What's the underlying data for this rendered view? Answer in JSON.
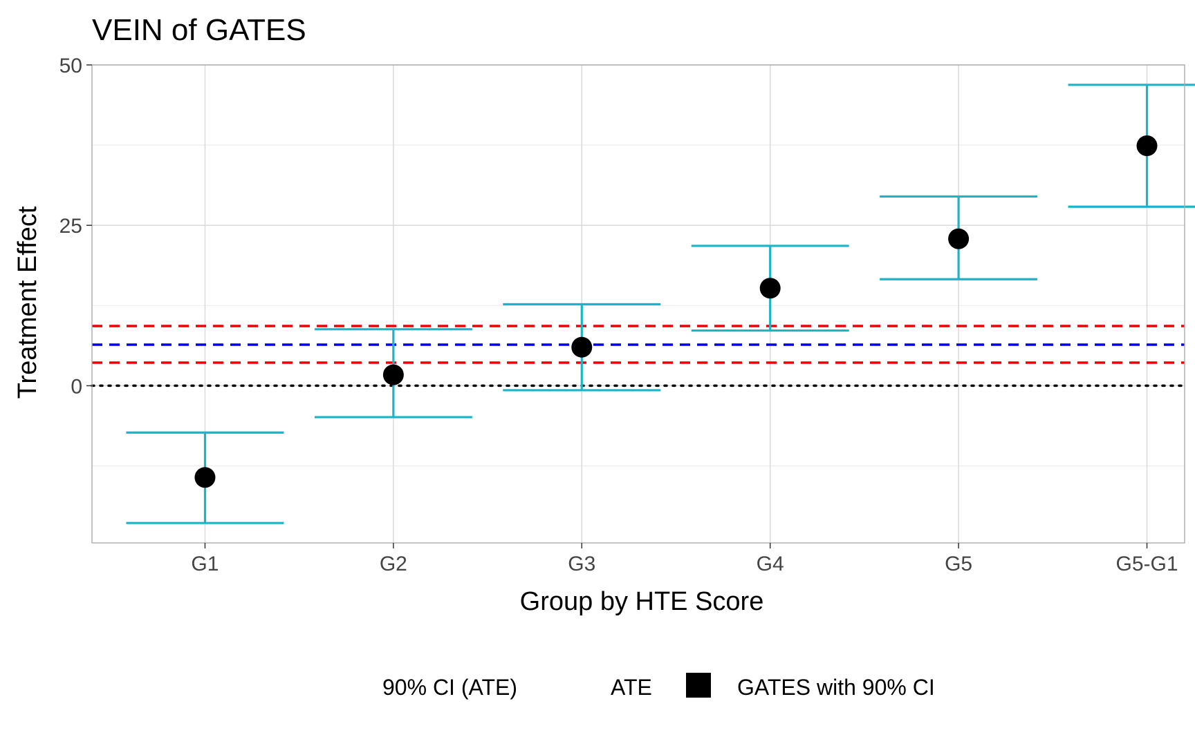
{
  "chart_data": {
    "type": "scatter",
    "title": "VEIN of GATES",
    "xlabel": "Group by HTE Score",
    "ylabel": "Treatment Effect",
    "categories": [
      "G1",
      "G2",
      "G3",
      "G4",
      "G5",
      "G5-G1"
    ],
    "ylim": [
      -24.5,
      50
    ],
    "yticks": [
      0,
      25,
      50
    ],
    "grid": true,
    "series": [
      {
        "name": "GATES with 90% CI",
        "values": [
          -14.3,
          1.7,
          6.0,
          15.2,
          22.9,
          37.4
        ],
        "lower": [
          -21.4,
          -4.9,
          -0.7,
          8.6,
          16.6,
          27.9
        ],
        "upper": [
          -7.3,
          8.8,
          12.7,
          21.8,
          29.5,
          46.9
        ]
      }
    ],
    "reference_lines": {
      "ate": 6.4,
      "ate_ci": [
        3.6,
        9.3
      ],
      "zero": 0
    },
    "legend": {
      "position": "bottom",
      "items": [
        "90% CI (ATE)",
        "ATE",
        "GATES with 90% CI"
      ]
    },
    "colors": {
      "errorbar": "#1ab5c8",
      "point": "#000000",
      "ate_line": "#0000ee",
      "ate_ci_line": "#ee0000",
      "zero_line": "#000000",
      "grid_major": "#d9d9d9",
      "grid_minor": "#ececec",
      "panel_border": "#aaaaaa",
      "text": "#000000",
      "tick_text": "#444444"
    }
  }
}
